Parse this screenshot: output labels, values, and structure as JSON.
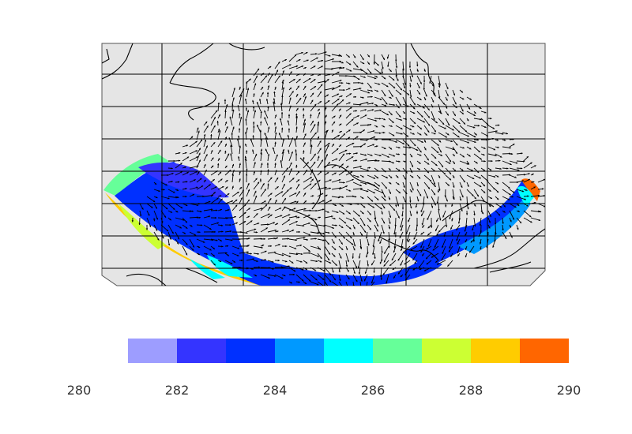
{
  "figure": {
    "description_type": "wind vector field over regional map with temperature shading",
    "colorbar": {
      "colors": [
        "#9d9dff",
        "#3434ff",
        "#0030ff",
        "#0099ff",
        "#00ffff",
        "#66ff99",
        "#ccff33",
        "#ffcc00",
        "#ff6600"
      ],
      "tick_labels": [
        "280",
        "282",
        "284",
        "286",
        "288",
        "290"
      ],
      "range": [
        280,
        290
      ]
    },
    "map": {
      "background_color": "#e5e5e5",
      "grid_color": "#000000",
      "coast_color": "#000000",
      "vector_color": "#000000"
    }
  }
}
